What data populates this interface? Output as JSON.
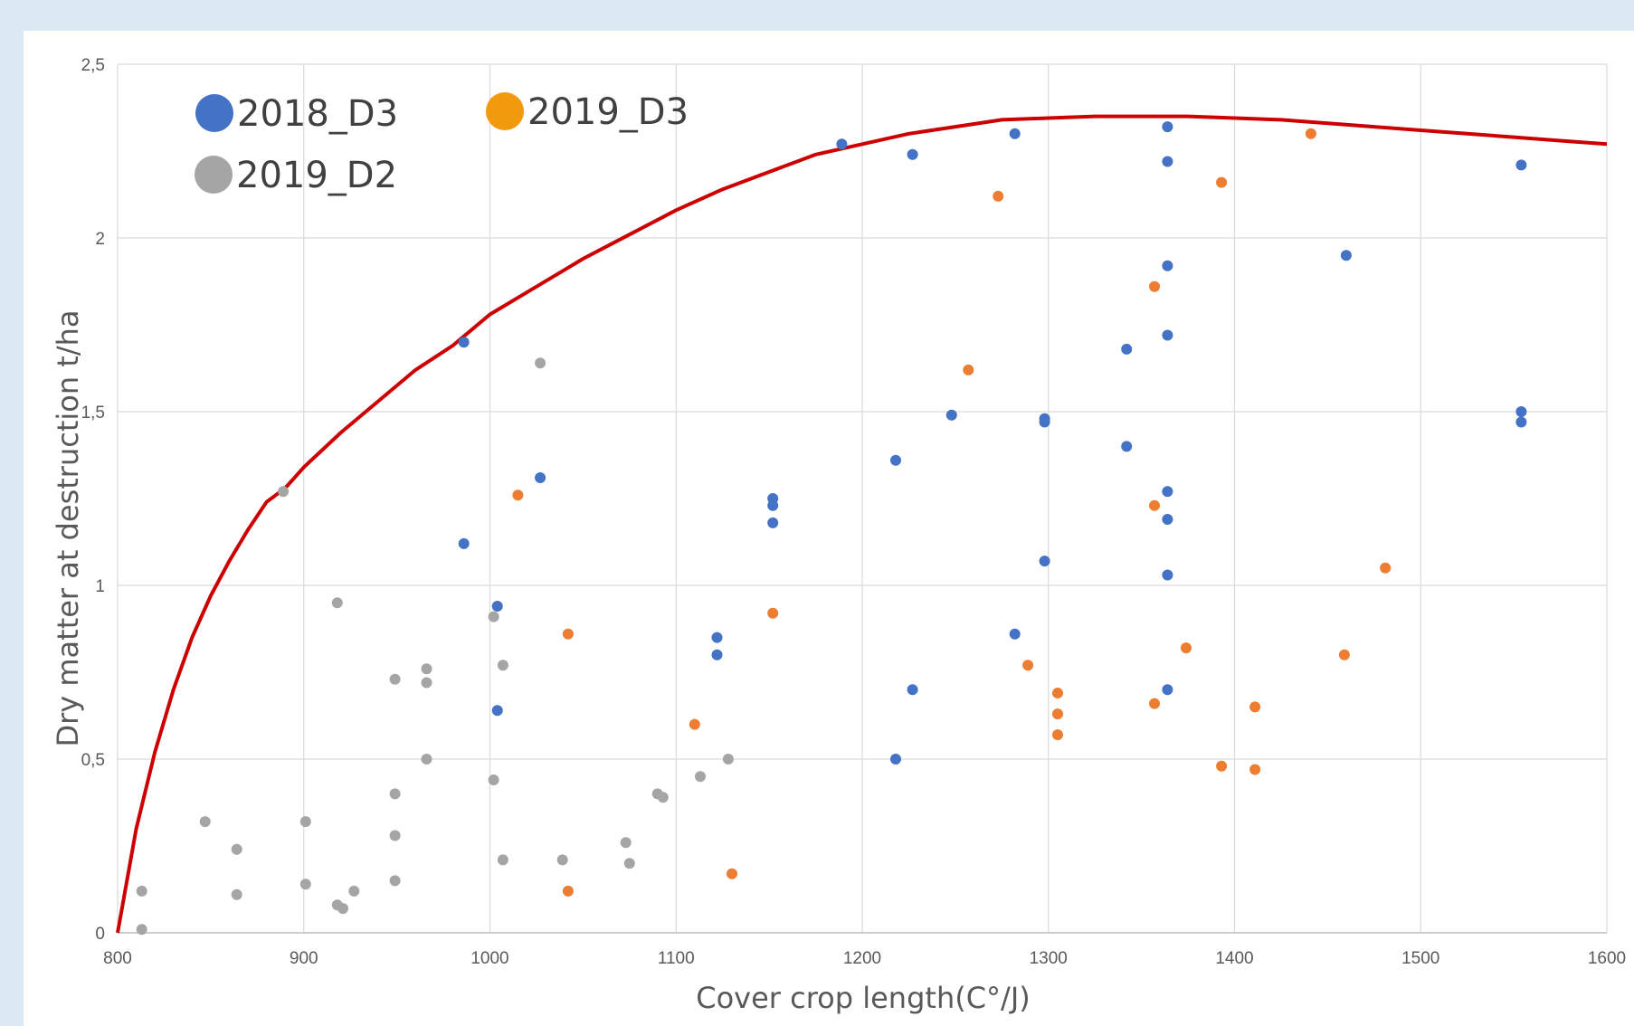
{
  "chart_data": {
    "type": "scatter",
    "title": "",
    "xlabel": "Cover crop length(C°/J)",
    "ylabel": "Dry matter at destruction t/ha",
    "xlim": [
      800,
      1600
    ],
    "ylim": [
      0,
      2.5
    ],
    "x_ticks": [
      800,
      900,
      1000,
      1100,
      1200,
      1300,
      1400,
      1500,
      1600
    ],
    "y_ticks": [
      0,
      0.5,
      1,
      1.5,
      2,
      2.5
    ],
    "x_tick_labels": [
      "800",
      "900",
      "1000",
      "1100",
      "1200",
      "1300",
      "1400",
      "1500",
      "1600"
    ],
    "y_tick_labels": [
      "0",
      "0,5",
      "1",
      "1,5",
      "2",
      "2,5"
    ],
    "grid": true,
    "legend_position": "top-left",
    "series": [
      {
        "name": "2018_D3",
        "color": "#4472c4",
        "legend_color": "#4472c4",
        "points": [
          [
            986,
            1.7
          ],
          [
            986,
            1.12
          ],
          [
            1004,
            0.94
          ],
          [
            1004,
            0.64
          ],
          [
            1027,
            1.31
          ],
          [
            1122,
            0.85
          ],
          [
            1122,
            0.8
          ],
          [
            1152,
            1.25
          ],
          [
            1152,
            1.23
          ],
          [
            1152,
            1.18
          ],
          [
            1189,
            2.27
          ],
          [
            1218,
            1.36
          ],
          [
            1218,
            0.5
          ],
          [
            1227,
            2.24
          ],
          [
            1227,
            0.7
          ],
          [
            1248,
            1.49
          ],
          [
            1282,
            2.3
          ],
          [
            1282,
            0.86
          ],
          [
            1298,
            1.48
          ],
          [
            1298,
            1.47
          ],
          [
            1298,
            1.07
          ],
          [
            1342,
            1.68
          ],
          [
            1342,
            1.4
          ],
          [
            1364,
            2.32
          ],
          [
            1364,
            2.22
          ],
          [
            1364,
            1.92
          ],
          [
            1364,
            1.72
          ],
          [
            1364,
            1.27
          ],
          [
            1364,
            1.19
          ],
          [
            1364,
            1.03
          ],
          [
            1364,
            0.7
          ],
          [
            1460,
            1.95
          ],
          [
            1554,
            2.21
          ],
          [
            1554,
            1.5
          ],
          [
            1554,
            1.47
          ]
        ]
      },
      {
        "name": "2019_D3",
        "color": "#ed7d31",
        "legend_color": "#f29a0e",
        "points": [
          [
            1015,
            1.26
          ],
          [
            1042,
            0.86
          ],
          [
            1042,
            0.12
          ],
          [
            1110,
            0.6
          ],
          [
            1130,
            0.17
          ],
          [
            1152,
            0.92
          ],
          [
            1257,
            1.62
          ],
          [
            1273,
            2.12
          ],
          [
            1289,
            0.77
          ],
          [
            1305,
            0.69
          ],
          [
            1305,
            0.63
          ],
          [
            1305,
            0.57
          ],
          [
            1357,
            1.86
          ],
          [
            1357,
            1.23
          ],
          [
            1357,
            0.66
          ],
          [
            1374,
            0.82
          ],
          [
            1393,
            2.16
          ],
          [
            1393,
            0.48
          ],
          [
            1411,
            0.65
          ],
          [
            1411,
            0.47
          ],
          [
            1441,
            2.3
          ],
          [
            1459,
            0.8
          ],
          [
            1481,
            1.05
          ]
        ]
      },
      {
        "name": "2019_D2",
        "color": "#a5a5a5",
        "legend_color": "#a5a5a5",
        "points": [
          [
            813,
            0.12
          ],
          [
            813,
            0.01
          ],
          [
            847,
            0.32
          ],
          [
            864,
            0.24
          ],
          [
            864,
            0.11
          ],
          [
            889,
            1.27
          ],
          [
            901,
            0.32
          ],
          [
            901,
            0.14
          ],
          [
            918,
            0.95
          ],
          [
            918,
            0.08
          ],
          [
            921,
            0.07
          ],
          [
            927,
            0.12
          ],
          [
            949,
            0.73
          ],
          [
            949,
            0.4
          ],
          [
            949,
            0.28
          ],
          [
            949,
            0.15
          ],
          [
            966,
            0.76
          ],
          [
            966,
            0.72
          ],
          [
            966,
            0.5
          ],
          [
            1002,
            0.91
          ],
          [
            1002,
            0.44
          ],
          [
            1007,
            0.77
          ],
          [
            1007,
            0.21
          ],
          [
            1027,
            1.64
          ],
          [
            1039,
            0.21
          ],
          [
            1073,
            0.26
          ],
          [
            1075,
            0.2
          ],
          [
            1090,
            0.4
          ],
          [
            1093,
            0.39
          ],
          [
            1113,
            0.45
          ],
          [
            1128,
            0.5
          ]
        ]
      }
    ],
    "trendline": {
      "color": "#cc0000",
      "points": [
        [
          800,
          0.0
        ],
        [
          805,
          0.15
        ],
        [
          810,
          0.3
        ],
        [
          820,
          0.52
        ],
        [
          830,
          0.7
        ],
        [
          840,
          0.85
        ],
        [
          850,
          0.97
        ],
        [
          860,
          1.07
        ],
        [
          870,
          1.16
        ],
        [
          880,
          1.24
        ],
        [
          890,
          1.28
        ],
        [
          900,
          1.34
        ],
        [
          920,
          1.44
        ],
        [
          940,
          1.53
        ],
        [
          960,
          1.62
        ],
        [
          980,
          1.69
        ],
        [
          1000,
          1.78
        ],
        [
          1025,
          1.86
        ],
        [
          1050,
          1.94
        ],
        [
          1075,
          2.01
        ],
        [
          1100,
          2.08
        ],
        [
          1125,
          2.14
        ],
        [
          1150,
          2.19
        ],
        [
          1175,
          2.24
        ],
        [
          1200,
          2.27
        ],
        [
          1225,
          2.3
        ],
        [
          1250,
          2.32
        ],
        [
          1275,
          2.34
        ],
        [
          1300,
          2.345
        ],
        [
          1325,
          2.35
        ],
        [
          1350,
          2.35
        ],
        [
          1375,
          2.35
        ],
        [
          1400,
          2.345
        ],
        [
          1425,
          2.34
        ],
        [
          1450,
          2.33
        ],
        [
          1475,
          2.32
        ],
        [
          1500,
          2.31
        ],
        [
          1525,
          2.3
        ],
        [
          1550,
          2.29
        ],
        [
          1575,
          2.28
        ],
        [
          1600,
          2.27
        ]
      ]
    }
  }
}
